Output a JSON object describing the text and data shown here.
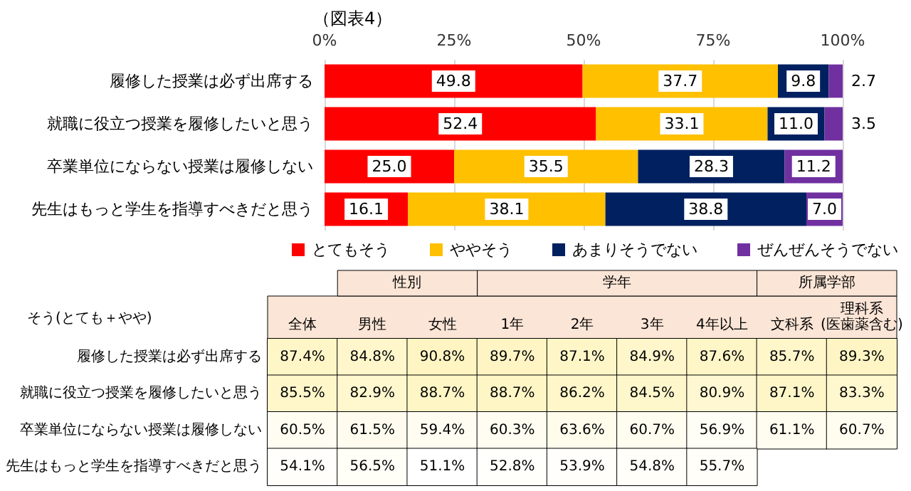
{
  "chart_data": [
    {
      "type": "bar",
      "title": "（図表4）",
      "orientation": "horizontal",
      "stacked": true,
      "categories": [
        "履修した授業は必ず出席する",
        "就職に役立つ授業を履修したいと思う",
        "卒業単位にならない授業は履修しない",
        "先生はもっと学生を指導すべきだと思う"
      ],
      "series": [
        {
          "name": "とてもそう",
          "color": "#ff0000",
          "values": [
            49.8,
            52.4,
            25.0,
            16.1
          ],
          "value_labels": [
            "49.8",
            "52.4",
            "25.0",
            "16.1"
          ]
        },
        {
          "name": "ややそう",
          "color": "#ffc000",
          "values": [
            37.7,
            33.1,
            35.5,
            38.1
          ],
          "value_labels": [
            "37.7",
            "33.1",
            "35.5",
            "38.1"
          ]
        },
        {
          "name": "あまりそうでない",
          "color": "#002060",
          "values": [
            9.8,
            11.0,
            28.3,
            38.8
          ],
          "value_labels": [
            "9.8",
            "11.0",
            "28.3",
            "38.8"
          ]
        },
        {
          "name": "ぜんぜんそうでない",
          "color": "#7030a0",
          "values": [
            2.7,
            3.5,
            11.2,
            7.0
          ],
          "value_labels": [
            "2.7",
            "3.5",
            "11.2",
            "7.0"
          ]
        }
      ],
      "xlim": [
        0,
        100
      ],
      "xticks": [
        {
          "value": 0,
          "label": "0%"
        },
        {
          "value": 25,
          "label": "25%"
        },
        {
          "value": 50,
          "label": "50%"
        },
        {
          "value": 75,
          "label": "75%"
        },
        {
          "value": 100,
          "label": "100%"
        }
      ],
      "grid": "x",
      "legend": "bottom"
    },
    {
      "type": "heatmap",
      "title": "そう(とても＋やや)",
      "annotations": [
        "性別",
        "学年",
        "所属学部"
      ],
      "categories": [
        "全体",
        "男性",
        "女性",
        "1年",
        "2年",
        "3年",
        "4年以上",
        "文科系",
        "理科系\n(医歯薬含む)"
      ],
      "y_categories": [
        "履修した授業は必ず出席する",
        "就職に役立つ授業を履修したいと思う",
        "卒業単位にならない授業は履修しない",
        "先生はもっと学生を指導すべきだと思う"
      ],
      "cells": [
        [
          87.4,
          84.8,
          90.8,
          89.7,
          87.1,
          84.9,
          87.6,
          85.7,
          89.3
        ],
        [
          85.5,
          82.9,
          88.7,
          88.7,
          86.2,
          84.5,
          80.9,
          87.1,
          83.3
        ],
        [
          60.5,
          61.5,
          59.4,
          60.3,
          63.6,
          60.7,
          56.9,
          61.1,
          60.7
        ],
        [
          54.1,
          56.5,
          51.1,
          52.8,
          53.9,
          54.8,
          55.7,
          null,
          null
        ]
      ],
      "cell_labels": [
        [
          "87.4%",
          "84.8%",
          "90.8%",
          "89.7%",
          "87.1%",
          "84.9%",
          "87.6%",
          "85.7%",
          "89.3%"
        ],
        [
          "85.5%",
          "82.9%",
          "88.7%",
          "88.7%",
          "86.2%",
          "84.5%",
          "80.9%",
          "87.1%",
          "83.3%"
        ],
        [
          "60.5%",
          "61.5%",
          "59.4%",
          "60.3%",
          "63.6%",
          "60.7%",
          "56.9%",
          "61.1%",
          "60.7%"
        ],
        [
          "54.1%",
          "56.5%",
          "51.1%",
          "52.8%",
          "53.9%",
          "54.8%",
          "55.7%",
          null,
          null
        ]
      ]
    }
  ]
}
